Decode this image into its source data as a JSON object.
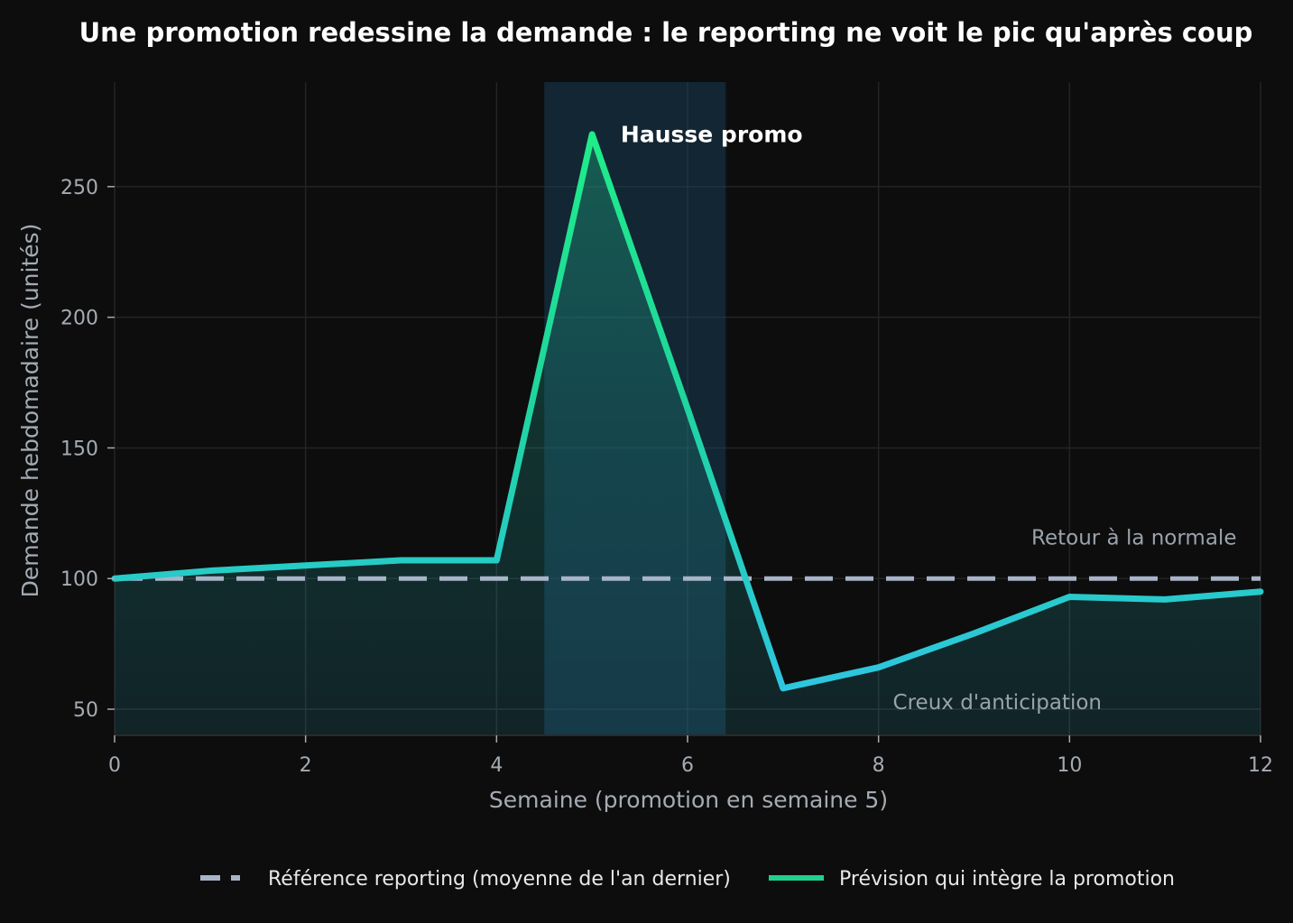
{
  "chart_data": {
    "type": "line",
    "title": "Une promotion redessine la demande : le reporting ne voit le pic qu'après coup",
    "xlabel": "Semaine (promotion en semaine 5)",
    "ylabel": "Demande hebdomadaire (unités)",
    "xlim": [
      0,
      12
    ],
    "ylim": [
      40,
      290
    ],
    "x_ticks": [
      0,
      2,
      4,
      6,
      8,
      10,
      12
    ],
    "y_ticks": [
      50,
      100,
      150,
      200,
      250
    ],
    "grid": true,
    "legend_position": "bottom",
    "promo_window": [
      4.5,
      6.4
    ],
    "series": [
      {
        "name": "Référence reporting (moyenne de l'an dernier)",
        "style": "dashed",
        "color": "#a8b4c8",
        "x": [
          0,
          12
        ],
        "y": [
          100,
          100
        ]
      },
      {
        "name": "Prévision qui intègre la promotion",
        "style": "solid-gradient",
        "color": "#1fd08e",
        "x": [
          0,
          1,
          2,
          3,
          4,
          5,
          6,
          7,
          8,
          9,
          10,
          11,
          12
        ],
        "y": [
          100,
          103,
          105,
          107,
          107,
          270,
          165,
          58,
          66,
          79,
          93,
          92,
          95
        ]
      }
    ],
    "annotations": [
      {
        "text": "Hausse promo",
        "x": 5.3,
        "y": 267,
        "emphasis": "strong"
      },
      {
        "text": "Retour à la normale",
        "x": 9.6,
        "y": 113,
        "emphasis": "muted"
      },
      {
        "text": "Creux d'anticipation",
        "x": 8.15,
        "y": 50,
        "emphasis": "muted"
      }
    ],
    "colors": {
      "background": "#0d0d0d",
      "grid": "#242424",
      "promo_band": "#1b4a68",
      "peak": "#1fec8a",
      "mid": "#1fd2a2",
      "low": "#2ec6e0",
      "baseline": "#a8b4c8"
    }
  }
}
